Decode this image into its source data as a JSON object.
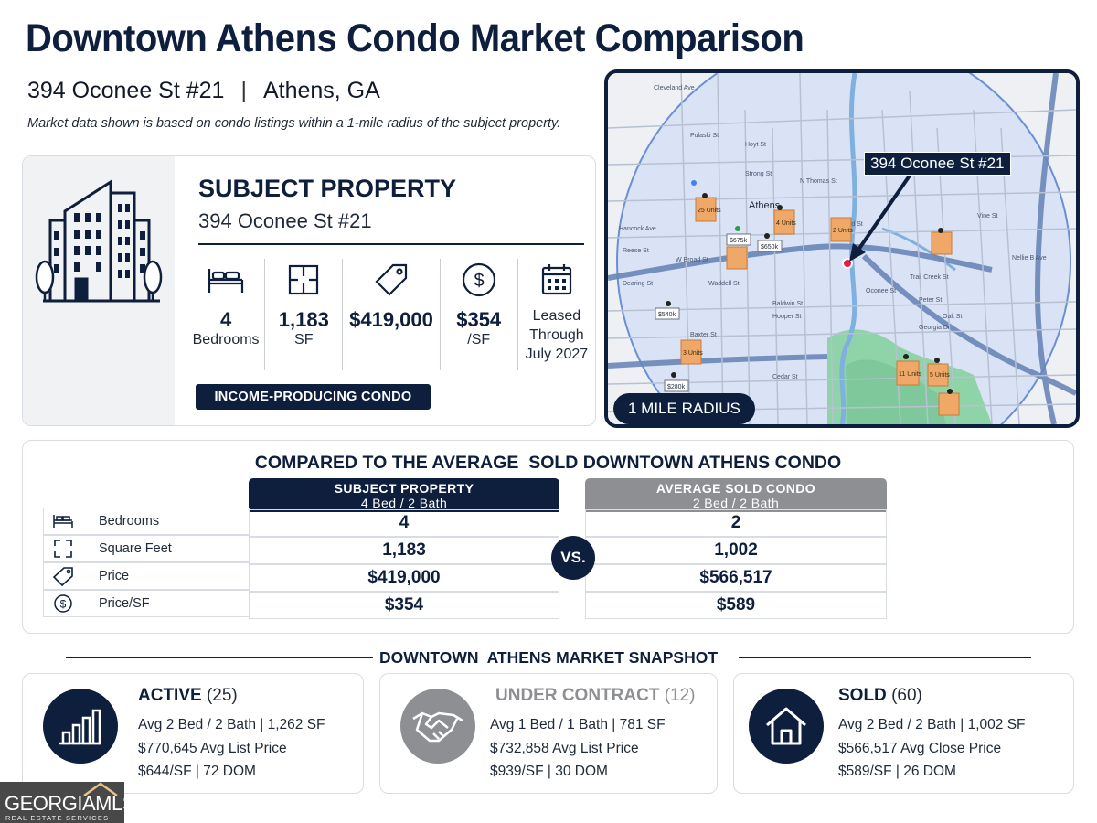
{
  "title": "Downtown Athens Condo Market Comparison",
  "address": "394 Oconee St #21",
  "city": "Athens, GA",
  "note": "Market data shown is based on condo listings within a 1-mile radius of the subject property.",
  "subject": {
    "heading": "SUBJECT PROPERTY",
    "address": "394 Oconee St #21",
    "stats": [
      {
        "icon": "bed-icon",
        "value": "4",
        "label": "Bedrooms"
      },
      {
        "icon": "floorplan-icon",
        "value": "1,183",
        "label": "SF"
      },
      {
        "icon": "price-tag-icon",
        "value": "$419,000",
        "label": ""
      },
      {
        "icon": "dollar-circle-icon",
        "value": "$354",
        "label": "/SF"
      }
    ],
    "lease": [
      "Leased",
      "Through",
      "July 2027"
    ],
    "badge": "INCOME-PRODUCING CONDO"
  },
  "map": {
    "callout": "394 Oconee St #21",
    "radius_label": "1 MILE RADIUS",
    "place_label": "Athens",
    "street_labels": [
      "Cleveland Ave",
      "W Broad St",
      "Baxter St",
      "Oak St",
      "Trail Creek St",
      "N Thomas St",
      "E Broad St",
      "Hoyt St",
      "Pulaski St",
      "Strong St",
      "Waddell St",
      "Hancock Ave",
      "Oconee St",
      "Georgia Dr",
      "Peter St",
      "Hooper St",
      "Baldwin St",
      "Cedar St",
      "Dearing St",
      "Reese St",
      "Nellie B Ave",
      "Vine St"
    ],
    "markers": [
      {
        "label": "$675k"
      },
      {
        "label": "$540k"
      },
      {
        "label": "$280k"
      },
      {
        "label": "$650k"
      },
      {
        "label": "25 Units"
      },
      {
        "label": "4 Units"
      },
      {
        "label": "3 Units"
      },
      {
        "label": "2 Units"
      },
      {
        "label": "11 Units"
      },
      {
        "label": "5 Units"
      }
    ]
  },
  "comparison": {
    "title": "COMPARED TO THE AVERAGE  SOLD DOWNTOWN ATHENS CONDO",
    "subject_head": [
      "SUBJECT PROPERTY",
      "4 Bed / 2 Bath"
    ],
    "average_head": [
      "AVERAGE SOLD CONDO",
      "2 Bed / 2 Bath"
    ],
    "vs": "VS.",
    "rows": [
      {
        "icon": "bed-icon",
        "label": "Bedrooms",
        "subject": "4",
        "average": "2"
      },
      {
        "icon": "expand-icon",
        "label": "Square Feet",
        "subject": "1,183",
        "average": "1,002"
      },
      {
        "icon": "price-tag-icon",
        "label": "Price",
        "subject": "$419,000",
        "average": "$566,517"
      },
      {
        "icon": "dollar-circle-icon",
        "label": "Price/SF",
        "subject": "$354",
        "average": "$589"
      }
    ]
  },
  "snapshot": {
    "title": "DOWNTOWN  ATHENS MARKET SNAPSHOT",
    "cards": [
      {
        "icon": "bar-chart-icon",
        "status": "ACTIVE",
        "count": "(25)",
        "line1": "Avg 2 Bed / 2 Bath   |   1,262 SF",
        "line2": "$770,645  Avg List Price",
        "line3": "$644/SF   |   72 DOM",
        "color": "#0e1e3d"
      },
      {
        "icon": "handshake-icon",
        "status": "UNDER CONTRACT",
        "count": "(12)",
        "line1": "Avg 1 Bed / 1 Bath   |   781 SF",
        "line2": "$732,858  Avg List Price",
        "line3": "$939/SF   |   30 DOM",
        "color": "#8d8f93"
      },
      {
        "icon": "house-icon",
        "status": "SOLD",
        "count": "(60)",
        "line1": "Avg 2 Bed / 2 Bath   |   1,002 SF",
        "line2": "$566,517  Avg Close Price",
        "line3": "$589/SF   |   26 DOM",
        "color": "#0e1e3d"
      }
    ]
  },
  "logo": {
    "text": "GEORGIAMLS",
    "tagline": "REAL ESTATE SERVICES"
  },
  "colors": {
    "navy": "#0e1e3d",
    "gray": "#8d8f93",
    "map_orange": "#f0a868",
    "map_green": "#8fd3a8"
  }
}
